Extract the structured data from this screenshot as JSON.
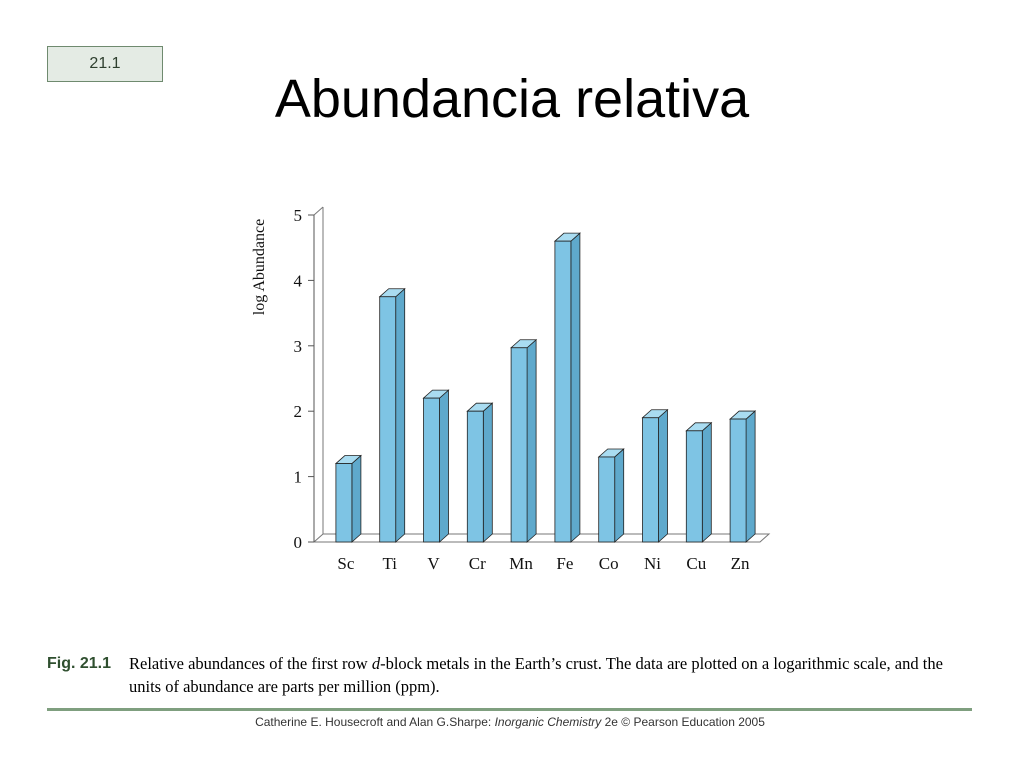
{
  "slide": {
    "badge": "21.1",
    "title": "Abundancia relativa"
  },
  "caption": {
    "label": "Fig. 21.1",
    "text_before": "Relative abundances of the first row ",
    "text_italic": "d",
    "text_after": "-block metals in the Earth’s crust. The data are plotted on a logarithmic scale, and the units of abundance are parts per million (ppm)."
  },
  "footer": {
    "authors": "Catherine E. Housecroft and Alan G.Sharpe: ",
    "book": "Inorganic Chemistry",
    "edition": " 2e © Pearson Education 2005"
  },
  "colors": {
    "bar_front": "#7ec4e4",
    "bar_side": "#5fa9cc",
    "bar_top": "#a9dcf1",
    "rule": "#7f9f7f"
  },
  "chart_data": {
    "type": "bar",
    "title": "",
    "xlabel": "",
    "ylabel": "log Abundance",
    "ylim": [
      0,
      5
    ],
    "yticks": [
      0,
      1,
      2,
      3,
      4,
      5
    ],
    "grid": false,
    "categories": [
      "Sc",
      "Ti",
      "V",
      "Cr",
      "Mn",
      "Fe",
      "Co",
      "Ni",
      "Cu",
      "Zn"
    ],
    "values": [
      1.2,
      3.75,
      2.2,
      2.0,
      2.97,
      4.6,
      1.3,
      1.9,
      1.7,
      1.88
    ]
  }
}
